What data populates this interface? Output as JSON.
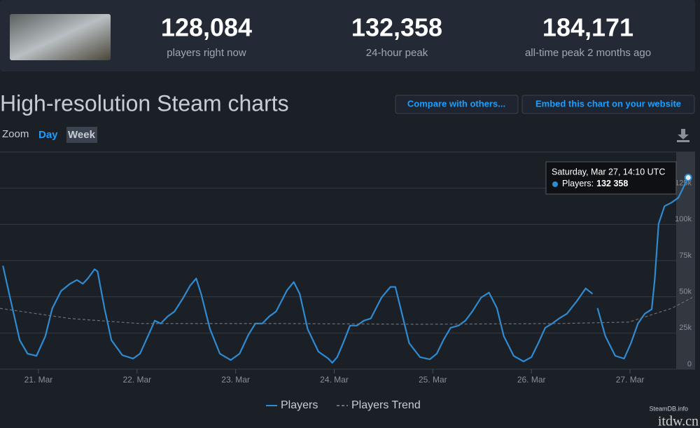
{
  "header": {
    "stats": [
      {
        "value": "128,084",
        "label": "players right now"
      },
      {
        "value": "132,358",
        "label": "24-hour peak"
      },
      {
        "value": "184,171",
        "label": "all-time peak 2 months ago"
      }
    ]
  },
  "title": "High-resolution Steam charts",
  "buttons": [
    "Compare with others...",
    "Embed this chart on your website"
  ],
  "zoom": {
    "label": "Zoom",
    "options": [
      "Day",
      "Week"
    ]
  },
  "chart_data": {
    "type": "line",
    "xlim": [
      20.61,
      27.66
    ],
    "ylim": [
      0,
      150000
    ],
    "xticks": [
      {
        "value": 21,
        "label": "21. Mar"
      },
      {
        "value": 22,
        "label": "22. Mar"
      },
      {
        "value": 23,
        "label": "23. Mar"
      },
      {
        "value": 24,
        "label": "24. Mar"
      },
      {
        "value": 25,
        "label": "25. Mar"
      },
      {
        "value": 26,
        "label": "26. Mar"
      },
      {
        "value": 27,
        "label": "27. Mar"
      }
    ],
    "yticks": [
      0,
      {
        "value": 25000,
        "label": "25k"
      },
      {
        "value": 50000,
        "label": "50k"
      },
      {
        "value": 75000,
        "label": "75k"
      },
      {
        "value": 100000,
        "label": "100k"
      },
      {
        "value": 125000,
        "label": "125k"
      }
    ],
    "grid": true,
    "x": [
      20.64,
      20.72,
      20.81,
      20.89,
      20.98,
      21.07,
      21.14,
      21.23,
      21.32,
      21.39,
      21.45,
      21.5,
      21.57,
      21.6,
      21.67,
      21.74,
      21.85,
      21.96,
      22.03,
      22.11,
      22.18,
      22.24,
      22.31,
      22.38,
      22.47,
      22.54,
      22.6,
      22.65,
      22.74,
      22.84,
      22.95,
      23.04,
      23.13,
      23.2,
      23.27,
      23.34,
      23.41,
      23.52,
      23.59,
      23.65,
      23.73,
      23.84,
      23.94,
      23.98,
      24.03,
      24.09,
      24.16,
      24.23,
      24.3,
      24.37,
      24.48,
      24.57,
      24.62,
      24.69,
      24.76,
      24.87,
      24.97,
      25.04,
      25.11,
      25.18,
      25.26,
      25.33,
      25.4,
      25.49,
      25.57,
      25.65,
      25.72,
      25.82,
      25.92,
      26.0,
      26.07,
      26.14,
      26.21,
      26.28,
      26.36,
      26.46,
      26.55,
      26.62,
      26.65,
      26.67,
      26.75,
      26.85,
      26.94,
      27.01,
      27.08,
      27.15,
      27.22,
      27.25,
      27.29,
      27.35,
      27.42,
      27.49,
      27.59
    ],
    "series": [
      {
        "name": "Players",
        "color": "#2f8bd1",
        "values": [
          71400,
          47000,
          20000,
          10700,
          9200,
          22800,
          42000,
          54000,
          59000,
          61600,
          59000,
          62600,
          69000,
          67500,
          42000,
          20000,
          9700,
          7300,
          10700,
          22800,
          33500,
          31500,
          36400,
          39800,
          49500,
          57800,
          62600,
          52000,
          27700,
          10700,
          6300,
          10700,
          23800,
          31500,
          31500,
          36400,
          39800,
          54400,
          60200,
          52000,
          27700,
          12100,
          7300,
          4400,
          8300,
          18000,
          30100,
          30100,
          33500,
          35000,
          49500,
          56800,
          56800,
          37400,
          18000,
          8300,
          6800,
          10700,
          20400,
          28600,
          30100,
          33500,
          39800,
          49500,
          52900,
          42200,
          22800,
          9200,
          5300,
          8300,
          18000,
          28600,
          31500,
          35000,
          38300,
          47000,
          55800,
          52000,
          null,
          42200,
          22800,
          9200,
          7300,
          18000,
          31500,
          38300,
          41300,
          61600,
          100500,
          112600,
          115000,
          118400,
          132358
        ]
      },
      {
        "name": "Players Trend",
        "color": "#6b7079",
        "dashed": true,
        "x": [
          20.61,
          21.32,
          22.03,
          23.45,
          24.87,
          26.28,
          26.99,
          27.42,
          27.63
        ],
        "values": [
          42000,
          35000,
          31500,
          31500,
          31000,
          31500,
          32500,
          42000,
          49500
        ]
      }
    ],
    "tooltip": {
      "date": "Saturday, Mar 27, 14:10 UTC",
      "series": "Players:",
      "value_label": "132 358"
    },
    "credits": "SteamDB.info"
  },
  "watermark": "itdw.cn"
}
